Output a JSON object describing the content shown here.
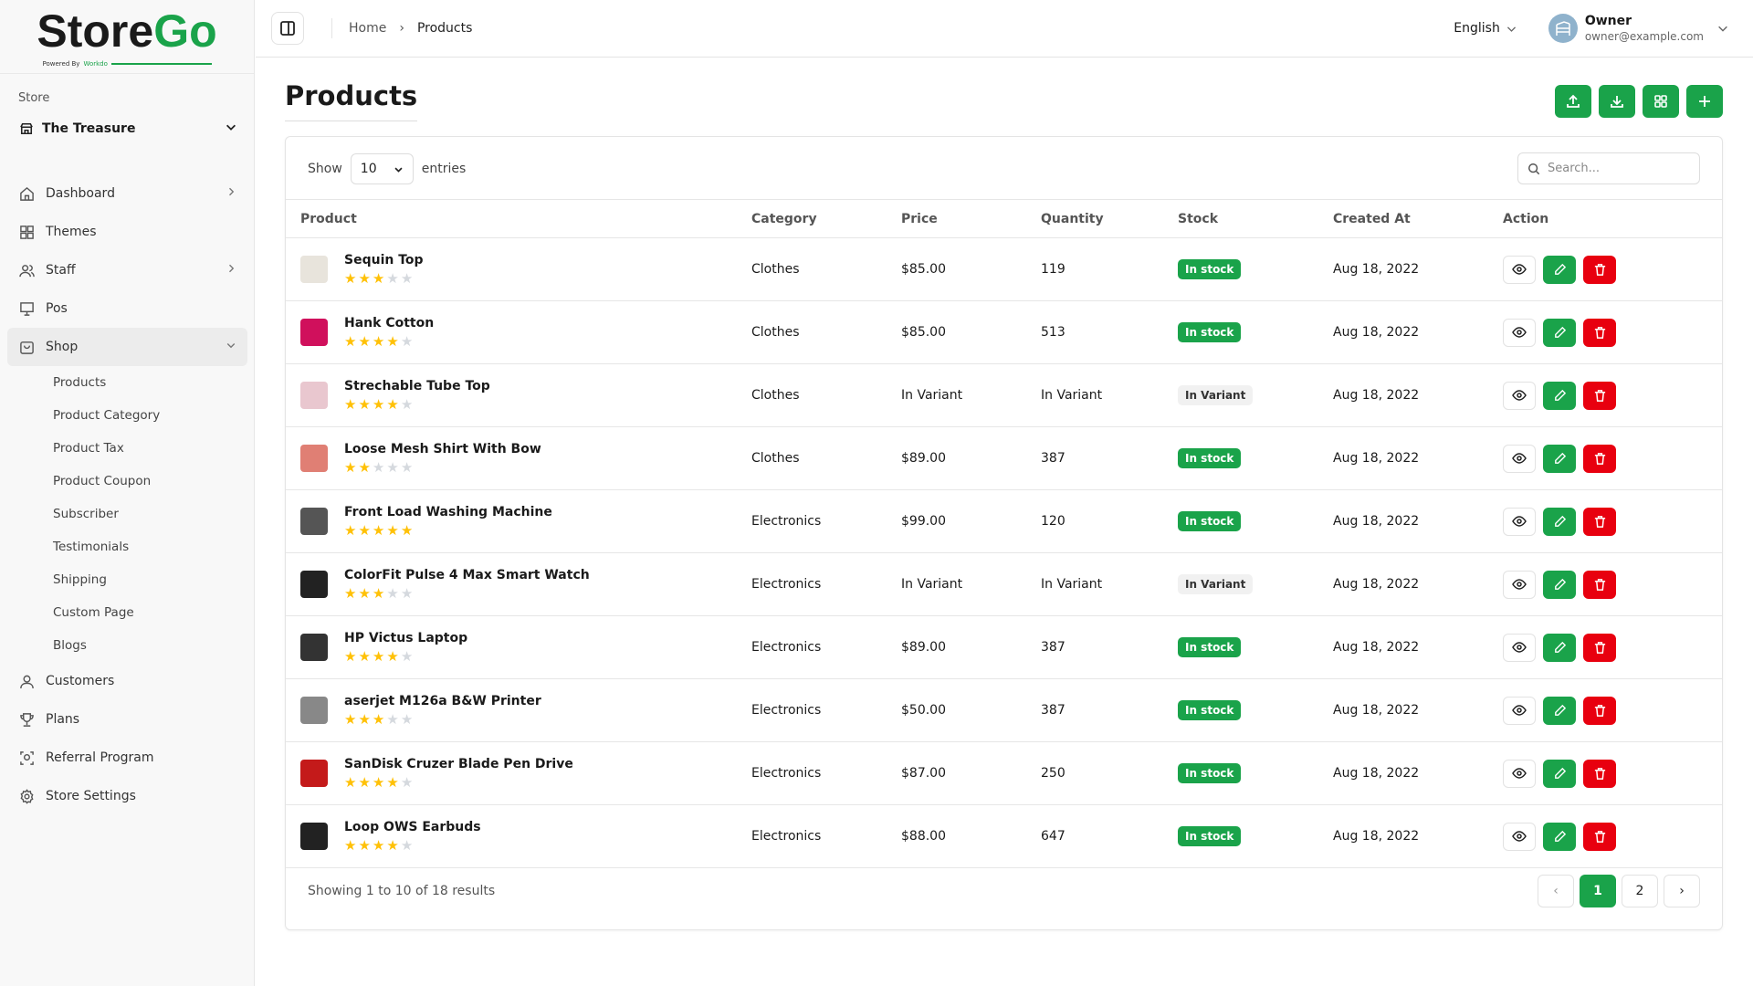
{
  "brand": {
    "name_a": "Store",
    "name_b": "Go",
    "tagline_a": "Powered By",
    "tagline_b": "Workdo"
  },
  "sidebar": {
    "store_label": "Store",
    "store_name": "The Treasure",
    "items": [
      {
        "label": "Dashboard",
        "icon": "home-icon",
        "chevron": "right"
      },
      {
        "label": "Themes",
        "icon": "grid-icon"
      },
      {
        "label": "Staff",
        "icon": "users-icon",
        "chevron": "right"
      },
      {
        "label": "Pos",
        "icon": "monitor-icon"
      },
      {
        "label": "Shop",
        "icon": "shop-icon",
        "chevron": "down",
        "open": true
      }
    ],
    "shop_sub": [
      "Products",
      "Product Category",
      "Product Tax",
      "Product Coupon",
      "Subscriber",
      "Testimonials",
      "Shipping",
      "Custom Page",
      "Blogs"
    ],
    "items_after": [
      {
        "label": "Customers",
        "icon": "user-icon"
      },
      {
        "label": "Plans",
        "icon": "trophy-icon"
      },
      {
        "label": "Referral Program",
        "icon": "referral-icon"
      },
      {
        "label": "Store Settings",
        "icon": "gear-icon"
      }
    ]
  },
  "header": {
    "breadcrumb": [
      "Home",
      "Products"
    ],
    "language": "English",
    "user_name": "Owner",
    "user_email": "owner@example.com"
  },
  "page": {
    "title": "Products",
    "actions": [
      "upload-icon",
      "download-icon",
      "grid-icon",
      "plus-icon"
    ]
  },
  "table": {
    "show_label": "Show",
    "entries_label": "entries",
    "page_size": "10",
    "search_placeholder": "Search...",
    "columns": [
      "Product",
      "Category",
      "Price",
      "Quantity",
      "Stock",
      "Created At",
      "Action"
    ],
    "rows": [
      {
        "name": "Sequin Top",
        "rating": 3,
        "category": "Clothes",
        "price": "$85.00",
        "quantity": "119",
        "stock": "In stock",
        "created": "Aug 18, 2022"
      },
      {
        "name": "Hank Cotton",
        "rating": 4,
        "category": "Clothes",
        "price": "$85.00",
        "quantity": "513",
        "stock": "In stock",
        "created": "Aug 18, 2022"
      },
      {
        "name": "Strechable Tube Top",
        "rating": 4,
        "category": "Clothes",
        "price": "In Variant",
        "quantity": "In Variant",
        "stock": "In Variant",
        "created": "Aug 18, 2022"
      },
      {
        "name": "Loose Mesh Shirt With Bow",
        "rating": 2,
        "category": "Clothes",
        "price": "$89.00",
        "quantity": "387",
        "stock": "In stock",
        "created": "Aug 18, 2022"
      },
      {
        "name": "Front Load Washing Machine",
        "rating": 5,
        "category": "Electronics",
        "price": "$99.00",
        "quantity": "120",
        "stock": "In stock",
        "created": "Aug 18, 2022"
      },
      {
        "name": "ColorFit Pulse 4 Max Smart Watch",
        "rating": 3,
        "category": "Electronics",
        "price": "In Variant",
        "quantity": "In Variant",
        "stock": "In Variant",
        "created": "Aug 18, 2022"
      },
      {
        "name": "HP Victus Laptop",
        "rating": 4,
        "category": "Electronics",
        "price": "$89.00",
        "quantity": "387",
        "stock": "In stock",
        "created": "Aug 18, 2022"
      },
      {
        "name": "aserjet M126a B&W Printer",
        "rating": 3,
        "category": "Electronics",
        "price": "$50.00",
        "quantity": "387",
        "stock": "In stock",
        "created": "Aug 18, 2022"
      },
      {
        "name": "SanDisk Cruzer Blade Pen Drive",
        "rating": 4,
        "category": "Electronics",
        "price": "$87.00",
        "quantity": "250",
        "stock": "In stock",
        "created": "Aug 18, 2022"
      },
      {
        "name": "Loop OWS Earbuds",
        "rating": 4,
        "category": "Electronics",
        "price": "$88.00",
        "quantity": "647",
        "stock": "In stock",
        "created": "Aug 18, 2022"
      }
    ],
    "summary": "Showing 1 to 10 of 18 results",
    "pages": [
      "1",
      "2"
    ],
    "current_page": "1"
  },
  "colors": {
    "accent": "#1aa34a",
    "danger": "#e8000f",
    "star": "#ffc107",
    "star_empty": "#d5d9de",
    "variant_bg": "#f1f1f1"
  }
}
